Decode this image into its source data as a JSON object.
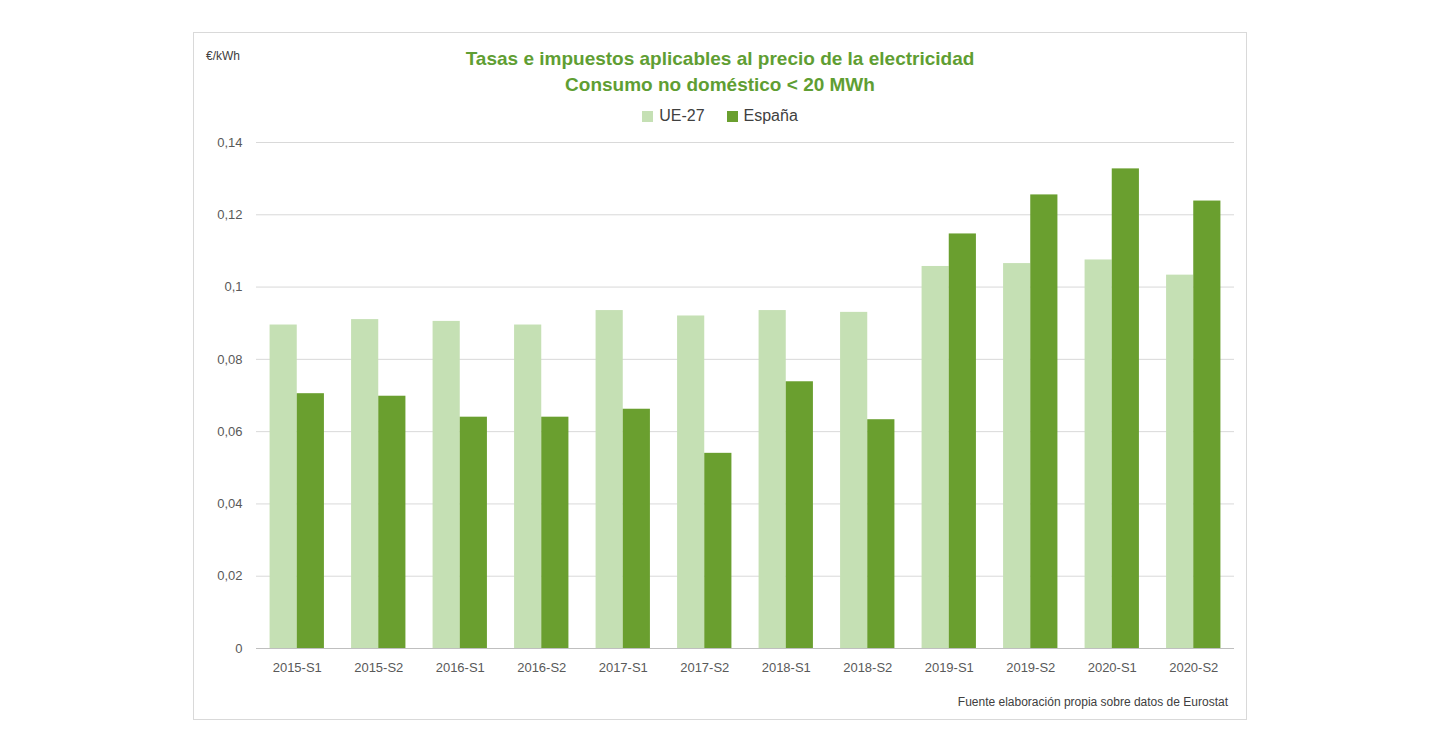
{
  "chart_data": {
    "type": "bar",
    "title": "Tasas e impuestos aplicables al precio de la electricidad",
    "subtitle": "Consumo no doméstico < 20 MWh",
    "y_label": "€/kWh",
    "source": "Fuente elaboración propia sobre datos de Eurostat",
    "categories": [
      "2015-S1",
      "2015-S2",
      "2016-S1",
      "2016-S2",
      "2017-S1",
      "2017-S2",
      "2018-S1",
      "2018-S2",
      "2019-S1",
      "2019-S2",
      "2020-S1",
      "2020-S2"
    ],
    "series": [
      {
        "name": "UE-27",
        "color": "#c5e0b4",
        "values": [
          0.0895,
          0.091,
          0.0905,
          0.0895,
          0.0935,
          0.092,
          0.0935,
          0.093,
          0.1057,
          0.1065,
          0.1075,
          0.1033
        ]
      },
      {
        "name": "España",
        "color": "#6a9f2f",
        "values": [
          0.0705,
          0.0698,
          0.064,
          0.064,
          0.0662,
          0.054,
          0.0738,
          0.0633,
          0.1147,
          0.1255,
          0.1327,
          0.1238
        ]
      }
    ],
    "ylim": [
      0,
      0.14
    ],
    "yticks": [
      0,
      {
        "value": 0.02,
        "label": "0,02"
      },
      {
        "value": 0.04,
        "label": "0,04"
      },
      {
        "value": 0.06,
        "label": "0,06"
      },
      {
        "value": 0.08,
        "label": "0,08"
      },
      {
        "value": 0.1,
        "label": "0,1"
      },
      {
        "value": 0.12,
        "label": "0,12"
      },
      {
        "value": 0.14,
        "label": "0,14"
      }
    ],
    "grid": true,
    "legend": "top"
  }
}
